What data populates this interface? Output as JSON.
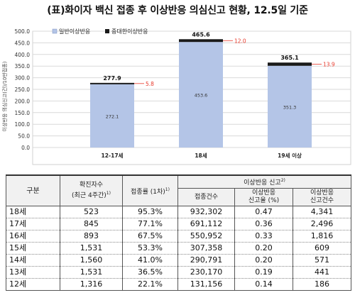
{
  "title": "(표)화이자 백신 접종 후 이상반응 의심신고 현황, 12.5일 기준",
  "chart_data": {
    "type": "bar",
    "stacked": true,
    "ylabel": "이상반응 의심신고(건)/10만접종)",
    "ylim": [
      0,
      500
    ],
    "yticks": [
      "0.0",
      "50.0",
      "100.0",
      "150.0",
      "200.0",
      "250.0",
      "300.0",
      "350.0",
      "400.0",
      "450.0",
      "500.0"
    ],
    "categories": [
      "12-17세",
      "18세",
      "19세 이상"
    ],
    "series": [
      {
        "name": "일반이상반응",
        "color": "#b4c5e7",
        "values": [
          272.1,
          453.6,
          351.3
        ],
        "labels": [
          "272.1",
          "453.6",
          "351.3"
        ]
      },
      {
        "name": "중대한이상반응",
        "color": "#1a1a1a",
        "values": [
          5.8,
          12.0,
          13.9
        ],
        "labels": [
          "5.8",
          "12.0",
          "13.9"
        ],
        "label_color": "#e8392b"
      }
    ],
    "totals": [
      "277.9",
      "465.6",
      "365.1"
    ],
    "grid": true,
    "legend": "top-left"
  },
  "table": {
    "headers": {
      "group": "구분",
      "confirmed": "확진자수",
      "confirmed_sub": "(최근 4주간)",
      "confirmed_sup": "1)",
      "rate": "접종률 (1차)",
      "rate_sup": "1)",
      "adverse": "이상반응 신고",
      "adverse_sup": "2)",
      "doses": "접종건수",
      "report_rate": "이상반응",
      "report_rate_sub": "신고율 (%)",
      "report_count": "이상반응",
      "report_count_sub": "신고건수"
    },
    "rows": [
      [
        "18세",
        "523",
        "95.3%",
        "932,302",
        "0.47",
        "4,341"
      ],
      [
        "17세",
        "845",
        "77.1%",
        "691,112",
        "0.36",
        "2,496"
      ],
      [
        "16세",
        "893",
        "67.5%",
        "550,952",
        "0.33",
        "1,816"
      ],
      [
        "15세",
        "1,531",
        "53.3%",
        "307,358",
        "0.20",
        "609"
      ],
      [
        "14세",
        "1,560",
        "41.0%",
        "290,791",
        "0.20",
        "571"
      ],
      [
        "13세",
        "1,531",
        "36.5%",
        "230,170",
        "0.19",
        "441"
      ],
      [
        "12세",
        "1,316",
        "22.1%",
        "131,156",
        "0.14",
        "186"
      ]
    ]
  }
}
